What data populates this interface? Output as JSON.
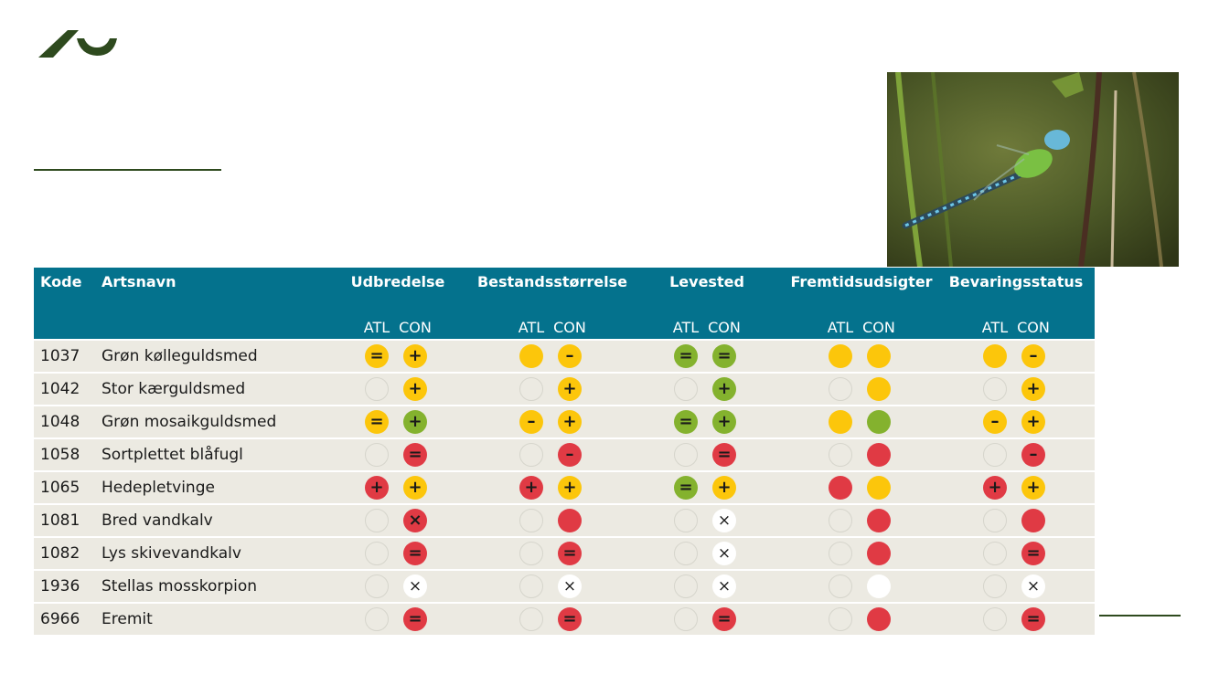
{
  "colors": {
    "header_bg": "#04728d",
    "row_bg": "#eceae2",
    "yellow": "#fcc60b",
    "green": "#84b22e",
    "red": "#e03a44",
    "logo": "#2e4a1e"
  },
  "table": {
    "headers": {
      "kode": "Kode",
      "artsnavn": "Artsnavn",
      "groups": [
        "Udbredelse",
        "Bestandsstørrelse",
        "Levested",
        "Fremtidsudsigter",
        "Bevaringsstatus"
      ],
      "sub": [
        "ATL",
        "CON"
      ]
    },
    "rows": [
      {
        "kode": "1037",
        "navn": "Grøn kølleguldsmed",
        "cells": [
          [
            "yellow",
            "="
          ],
          [
            "yellow",
            "+"
          ],
          [
            "yellow",
            ""
          ],
          [
            "yellow",
            "–"
          ],
          [
            "green",
            "="
          ],
          [
            "green",
            "="
          ],
          [
            "yellow",
            ""
          ],
          [
            "yellow",
            ""
          ],
          [
            "yellow",
            ""
          ],
          [
            "yellow",
            "–"
          ]
        ]
      },
      {
        "kode": "1042",
        "navn": "Stor kærguldsmed",
        "cells": [
          [
            "empty",
            ""
          ],
          [
            "yellow",
            "+"
          ],
          [
            "empty",
            ""
          ],
          [
            "yellow",
            "+"
          ],
          [
            "empty",
            ""
          ],
          [
            "green",
            "+"
          ],
          [
            "empty",
            ""
          ],
          [
            "yellow",
            ""
          ],
          [
            "empty",
            ""
          ],
          [
            "yellow",
            "+"
          ]
        ]
      },
      {
        "kode": "1048",
        "navn": "Grøn mosaikguldsmed",
        "cells": [
          [
            "yellow",
            "="
          ],
          [
            "green",
            "+"
          ],
          [
            "yellow",
            "–"
          ],
          [
            "yellow",
            "+"
          ],
          [
            "green",
            "="
          ],
          [
            "green",
            "+"
          ],
          [
            "yellow",
            ""
          ],
          [
            "green",
            ""
          ],
          [
            "yellow",
            "–"
          ],
          [
            "yellow",
            "+"
          ]
        ]
      },
      {
        "kode": "1058",
        "navn": "Sortplettet blåfugl",
        "cells": [
          [
            "empty",
            ""
          ],
          [
            "red",
            "="
          ],
          [
            "empty",
            ""
          ],
          [
            "red",
            "–"
          ],
          [
            "empty",
            ""
          ],
          [
            "red",
            "="
          ],
          [
            "empty",
            ""
          ],
          [
            "red",
            ""
          ],
          [
            "empty",
            ""
          ],
          [
            "red",
            "–"
          ]
        ]
      },
      {
        "kode": "1065",
        "navn": "Hedepletvinge",
        "cells": [
          [
            "red",
            "+"
          ],
          [
            "yellow",
            "+"
          ],
          [
            "red",
            "+"
          ],
          [
            "yellow",
            "+"
          ],
          [
            "green",
            "="
          ],
          [
            "yellow",
            "+"
          ],
          [
            "red",
            ""
          ],
          [
            "yellow",
            ""
          ],
          [
            "red",
            "+"
          ],
          [
            "yellow",
            "+"
          ]
        ]
      },
      {
        "kode": "1081",
        "navn": "Bred vandkalv",
        "cells": [
          [
            "empty",
            ""
          ],
          [
            "red",
            "×"
          ],
          [
            "empty",
            ""
          ],
          [
            "red",
            ""
          ],
          [
            "empty",
            ""
          ],
          [
            "white",
            "×"
          ],
          [
            "empty",
            ""
          ],
          [
            "red",
            ""
          ],
          [
            "empty",
            ""
          ],
          [
            "red",
            ""
          ]
        ]
      },
      {
        "kode": "1082",
        "navn": "Lys skivevandkalv",
        "cells": [
          [
            "empty",
            ""
          ],
          [
            "red",
            "="
          ],
          [
            "empty",
            ""
          ],
          [
            "red",
            "="
          ],
          [
            "empty",
            ""
          ],
          [
            "white",
            "×"
          ],
          [
            "empty",
            ""
          ],
          [
            "red",
            ""
          ],
          [
            "empty",
            ""
          ],
          [
            "red",
            "="
          ]
        ]
      },
      {
        "kode": "1936",
        "navn": "Stellas mosskorpion",
        "cells": [
          [
            "empty",
            ""
          ],
          [
            "white",
            "×"
          ],
          [
            "empty",
            ""
          ],
          [
            "white",
            "×"
          ],
          [
            "empty",
            ""
          ],
          [
            "white",
            "×"
          ],
          [
            "empty",
            ""
          ],
          [
            "white",
            ""
          ],
          [
            "empty",
            ""
          ],
          [
            "white",
            "×"
          ]
        ]
      },
      {
        "kode": "6966",
        "navn": "Eremit",
        "cells": [
          [
            "empty",
            ""
          ],
          [
            "red",
            "="
          ],
          [
            "empty",
            ""
          ],
          [
            "red",
            "="
          ],
          [
            "empty",
            ""
          ],
          [
            "red",
            "="
          ],
          [
            "empty",
            ""
          ],
          [
            "red",
            ""
          ],
          [
            "empty",
            ""
          ],
          [
            "red",
            "="
          ]
        ]
      }
    ]
  }
}
